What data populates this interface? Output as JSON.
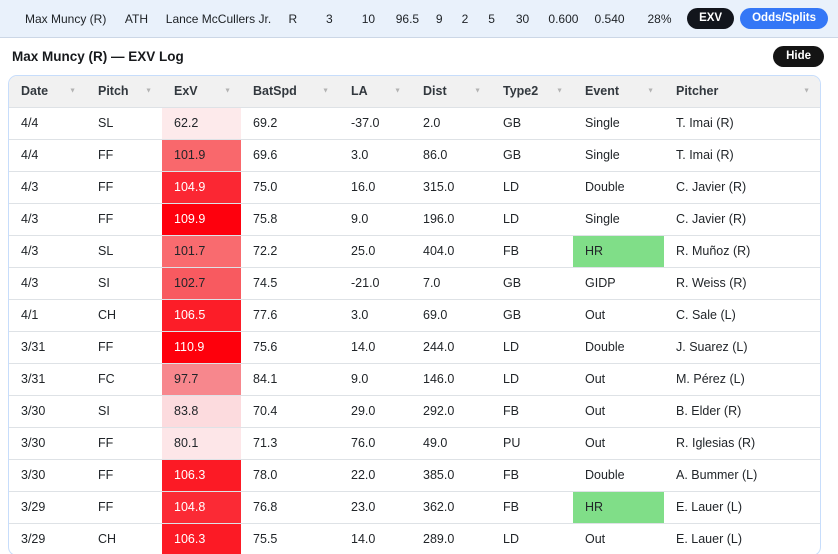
{
  "colors": {
    "topbar_bg": "#e9f1fb",
    "accent_blue": "#3477f6",
    "pill_dark": "#12151c",
    "hr_green": "#80de88",
    "panel_border": "#c7ddfb",
    "header_bg": "#f1f1f1"
  },
  "topbar": {
    "player": "Max Muncy (R)",
    "team": "ATH",
    "pitcher": "Lance McCullers Jr.",
    "stats": [
      "R",
      "3",
      "10",
      "96.5",
      "9",
      "2",
      "5",
      "30",
      "0.600",
      "0.540",
      "28%"
    ],
    "exv_button": "EXV",
    "odds_button": "Odds/Splits"
  },
  "section": {
    "title": "Max Muncy (R) — EXV Log",
    "hide_button": "Hide"
  },
  "table": {
    "columns": [
      "Date",
      "Pitch",
      "ExV",
      "BatSpd",
      "LA",
      "Dist",
      "Type2",
      "Event",
      "Pitcher"
    ],
    "rows": [
      {
        "date": "4/4",
        "pitch": "SL",
        "exv": "62.2",
        "exv_bg": "#fdeaeb",
        "exv_color": "#212529",
        "batspd": "69.2",
        "la": "-37.0",
        "dist": "2.0",
        "type2": "GB",
        "event": "Single",
        "event_bg": "",
        "pitcher": "T. Imai (R)"
      },
      {
        "date": "4/4",
        "pitch": "FF",
        "exv": "101.9",
        "exv_bg": "#f9686c",
        "exv_color": "#212529",
        "batspd": "69.6",
        "la": "3.0",
        "dist": "86.0",
        "type2": "GB",
        "event": "Single",
        "event_bg": "",
        "pitcher": "T. Imai (R)"
      },
      {
        "date": "4/3",
        "pitch": "FF",
        "exv": "104.9",
        "exv_bg": "#fb2733",
        "exv_color": "#ffffff",
        "batspd": "75.0",
        "la": "16.0",
        "dist": "315.0",
        "type2": "LD",
        "event": "Double",
        "event_bg": "",
        "pitcher": "C. Javier (R)"
      },
      {
        "date": "4/3",
        "pitch": "FF",
        "exv": "109.9",
        "exv_bg": "#fe000d",
        "exv_color": "#ffffff",
        "batspd": "75.8",
        "la": "9.0",
        "dist": "196.0",
        "type2": "LD",
        "event": "Single",
        "event_bg": "",
        "pitcher": "C. Javier (R)"
      },
      {
        "date": "4/3",
        "pitch": "SL",
        "exv": "101.7",
        "exv_bg": "#f96b6f",
        "exv_color": "#212529",
        "batspd": "72.2",
        "la": "25.0",
        "dist": "404.0",
        "type2": "FB",
        "event": "HR",
        "event_bg": "#80de88",
        "pitcher": "R. Muñoz (R)"
      },
      {
        "date": "4/3",
        "pitch": "SI",
        "exv": "102.7",
        "exv_bg": "#f85a60",
        "exv_color": "#212529",
        "batspd": "74.5",
        "la": "-21.0",
        "dist": "7.0",
        "type2": "GB",
        "event": "GIDP",
        "event_bg": "",
        "pitcher": "R. Weiss (R)"
      },
      {
        "date": "4/1",
        "pitch": "CH",
        "exv": "106.5",
        "exv_bg": "#fc1d28",
        "exv_color": "#ffffff",
        "batspd": "77.6",
        "la": "3.0",
        "dist": "69.0",
        "type2": "GB",
        "event": "Out",
        "event_bg": "",
        "pitcher": "C. Sale (L)"
      },
      {
        "date": "3/31",
        "pitch": "FF",
        "exv": "110.9",
        "exv_bg": "#fe000c",
        "exv_color": "#ffffff",
        "batspd": "75.6",
        "la": "14.0",
        "dist": "244.0",
        "type2": "LD",
        "event": "Double",
        "event_bg": "",
        "pitcher": "J. Suarez (L)"
      },
      {
        "date": "3/31",
        "pitch": "FC",
        "exv": "97.7",
        "exv_bg": "#f7878d",
        "exv_color": "#212529",
        "batspd": "84.1",
        "la": "9.0",
        "dist": "146.0",
        "type2": "LD",
        "event": "Out",
        "event_bg": "",
        "pitcher": "M. Pérez (L)"
      },
      {
        "date": "3/30",
        "pitch": "SI",
        "exv": "83.8",
        "exv_bg": "#fcdbde",
        "exv_color": "#212529",
        "batspd": "70.4",
        "la": "29.0",
        "dist": "292.0",
        "type2": "FB",
        "event": "Out",
        "event_bg": "",
        "pitcher": "B. Elder (R)"
      },
      {
        "date": "3/30",
        "pitch": "FF",
        "exv": "80.1",
        "exv_bg": "#fde6e8",
        "exv_color": "#212529",
        "batspd": "71.3",
        "la": "76.0",
        "dist": "49.0",
        "type2": "PU",
        "event": "Out",
        "event_bg": "",
        "pitcher": "R. Iglesias (R)"
      },
      {
        "date": "3/30",
        "pitch": "FF",
        "exv": "106.3",
        "exv_bg": "#fc1a25",
        "exv_color": "#ffffff",
        "batspd": "78.0",
        "la": "22.0",
        "dist": "385.0",
        "type2": "FB",
        "event": "Double",
        "event_bg": "",
        "pitcher": "A. Bummer (L)"
      },
      {
        "date": "3/29",
        "pitch": "FF",
        "exv": "104.8",
        "exv_bg": "#fb2a35",
        "exv_color": "#ffffff",
        "batspd": "76.8",
        "la": "23.0",
        "dist": "362.0",
        "type2": "FB",
        "event": "HR",
        "event_bg": "#80de88",
        "pitcher": "E. Lauer (L)"
      },
      {
        "date": "3/29",
        "pitch": "CH",
        "exv": "106.3",
        "exv_bg": "#fc1a25",
        "exv_color": "#ffffff",
        "batspd": "75.5",
        "la": "14.0",
        "dist": "289.0",
        "type2": "LD",
        "event": "Out",
        "event_bg": "",
        "pitcher": "E. Lauer (L)"
      }
    ]
  }
}
